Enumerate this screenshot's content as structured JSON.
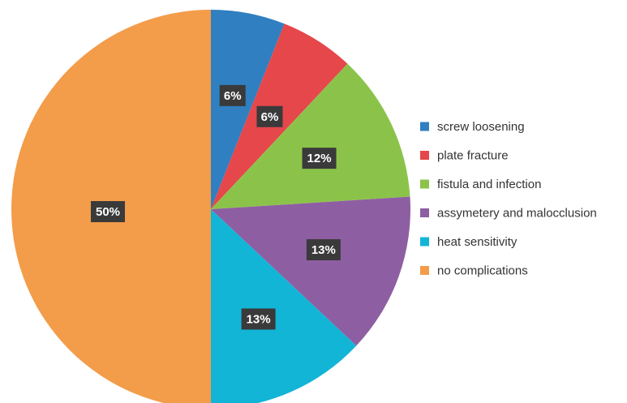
{
  "chart_data": {
    "type": "pie",
    "title": "",
    "slices": [
      {
        "label": "screw loosening",
        "value": 6,
        "display": "6%",
        "color": "#2f7fc1"
      },
      {
        "label": "plate fracture",
        "value": 6,
        "display": "6%",
        "color": "#e5474b"
      },
      {
        "label": "fistula and infection",
        "value": 12,
        "display": "12%",
        "color": "#8bc34a"
      },
      {
        "label": "assymetery and malocclusion",
        "value": 13,
        "display": "13%",
        "color": "#8e5ea2"
      },
      {
        "label": "heat sensitivity",
        "value": 13,
        "display": "13%",
        "color": "#12b5d6"
      },
      {
        "label": "no complications",
        "value": 50,
        "display": "50%",
        "color": "#f39c4a"
      }
    ],
    "start_angle_deg": 0,
    "direction": "clockwise",
    "legend_position": "right",
    "data_labels": true
  }
}
